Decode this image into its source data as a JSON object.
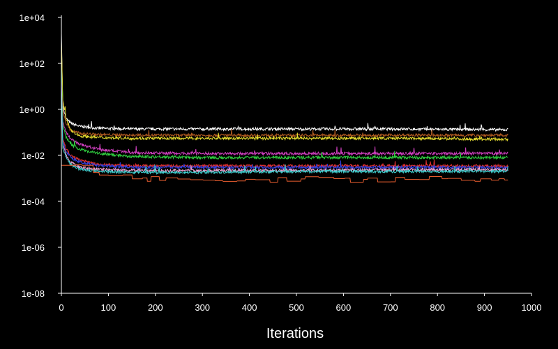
{
  "chart_data": {
    "type": "line",
    "title": "",
    "xlabel": "Iterations",
    "ylabel": "",
    "xlim": [
      0,
      1000
    ],
    "ylim": [
      1e-08,
      10000.0
    ],
    "yscale": "log",
    "grid": false,
    "legend": "none",
    "x_ticks": [
      "0",
      "100",
      "200",
      "300",
      "400",
      "500",
      "600",
      "700",
      "800",
      "900",
      "1000"
    ],
    "y_ticks": [
      "1e+04",
      "1e+02",
      "1e+00",
      "1e-02",
      "1e-04",
      "1e-06",
      "1e-08"
    ],
    "series": [
      {
        "name": "white",
        "color": "#ffffff",
        "x": [
          0,
          3,
          10,
          20,
          40,
          80,
          150,
          300,
          500,
          700,
          950
        ],
        "y": [
          2000,
          1.5,
          0.4,
          0.25,
          0.18,
          0.15,
          0.14,
          0.14,
          0.14,
          0.14,
          0.13
        ]
      },
      {
        "name": "brown",
        "color": "#b05a20",
        "x": [
          0,
          3,
          10,
          20,
          40,
          80,
          150,
          300,
          500,
          700,
          950
        ],
        "y": [
          500,
          1.0,
          0.25,
          0.12,
          0.09,
          0.08,
          0.075,
          0.075,
          0.075,
          0.075,
          0.075
        ]
      },
      {
        "name": "yellow",
        "color": "#e8e030",
        "x": [
          0,
          3,
          10,
          20,
          40,
          80,
          150,
          300,
          500,
          700,
          950
        ],
        "y": [
          800,
          2.5,
          0.4,
          0.12,
          0.07,
          0.06,
          0.055,
          0.055,
          0.055,
          0.055,
          0.05
        ]
      },
      {
        "name": "magenta",
        "color": "#d040c0",
        "x": [
          0,
          3,
          10,
          20,
          40,
          80,
          150,
          300,
          500,
          700,
          950
        ],
        "y": [
          50,
          0.3,
          0.1,
          0.05,
          0.03,
          0.018,
          0.013,
          0.012,
          0.012,
          0.012,
          0.012
        ]
      },
      {
        "name": "green",
        "color": "#30d040",
        "x": [
          0,
          3,
          10,
          20,
          40,
          80,
          150,
          300,
          500,
          700,
          950
        ],
        "y": [
          80,
          0.2,
          0.06,
          0.03,
          0.018,
          0.012,
          0.009,
          0.008,
          0.008,
          0.008,
          0.008
        ]
      },
      {
        "name": "red",
        "color": "#e03030",
        "x": [
          0,
          3,
          10,
          20,
          40,
          80,
          150,
          300,
          500,
          700,
          950
        ],
        "y": [
          20,
          0.05,
          0.02,
          0.01,
          0.006,
          0.004,
          0.0035,
          0.0035,
          0.0035,
          0.0035,
          0.0035
        ]
      },
      {
        "name": "blue",
        "color": "#3040e0",
        "x": [
          0,
          3,
          10,
          20,
          40,
          80,
          150,
          300,
          500,
          700,
          950
        ],
        "y": [
          20,
          0.04,
          0.015,
          0.008,
          0.005,
          0.0035,
          0.003,
          0.003,
          0.003,
          0.003,
          0.003
        ]
      },
      {
        "name": "pink",
        "color": "#f0a0d0",
        "x": [
          0,
          3,
          10,
          20,
          40,
          80,
          150,
          300,
          500,
          700,
          950
        ],
        "y": [
          10,
          0.03,
          0.01,
          0.005,
          0.003,
          0.0025,
          0.0022,
          0.0022,
          0.0022,
          0.0024,
          0.0024
        ]
      },
      {
        "name": "cyan",
        "color": "#40d0d0",
        "x": [
          0,
          3,
          10,
          20,
          40,
          80,
          150,
          300,
          500,
          700,
          950
        ],
        "y": [
          10,
          0.02,
          0.008,
          0.004,
          0.0025,
          0.002,
          0.0018,
          0.0018,
          0.002,
          0.002,
          0.002
        ]
      },
      {
        "name": "orange",
        "color": "#f06030",
        "x": [
          0,
          3,
          10,
          20,
          40,
          80,
          150,
          300,
          500,
          700,
          950
        ],
        "y": [
          0.003,
          0.002,
          0.004,
          0.005,
          0.003,
          0.0018,
          0.001,
          0.0009,
          0.0009,
          0.0009,
          0.0009
        ]
      }
    ]
  }
}
